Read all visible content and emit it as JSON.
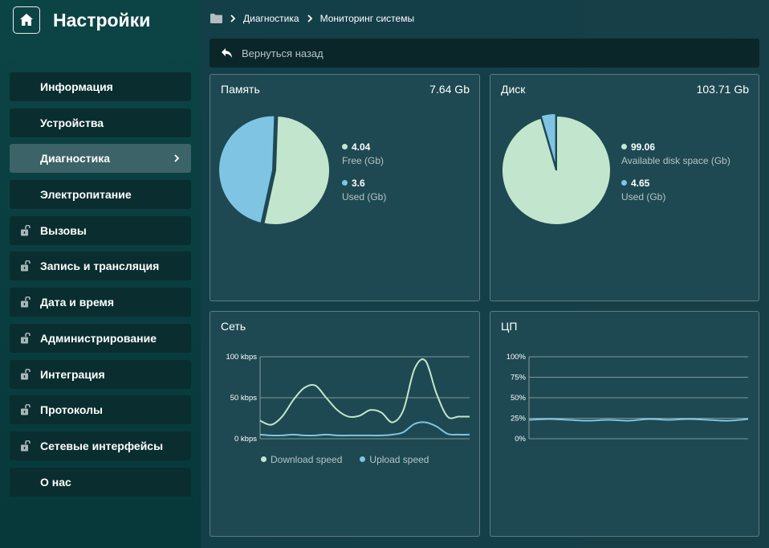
{
  "app": {
    "title": "Настройки"
  },
  "breadcrumb": [
    "Диагностика",
    "Мониторинг системы"
  ],
  "back": {
    "label": "Вернуться назад"
  },
  "sidebar": {
    "items": [
      {
        "label": "Информация",
        "locked": false,
        "active": false
      },
      {
        "label": "Устройства",
        "locked": false,
        "active": false
      },
      {
        "label": "Диагностика",
        "locked": false,
        "active": true
      },
      {
        "label": "Электропитание",
        "locked": false,
        "active": false
      },
      {
        "label": "Вызовы",
        "locked": true,
        "active": false
      },
      {
        "label": "Запись и трансляция",
        "locked": true,
        "active": false
      },
      {
        "label": "Дата и время",
        "locked": true,
        "active": false
      },
      {
        "label": "Администрирование",
        "locked": true,
        "active": false
      },
      {
        "label": "Интеграция",
        "locked": true,
        "active": false
      },
      {
        "label": "Протоколы",
        "locked": true,
        "active": false
      },
      {
        "label": "Сетевые интерфейсы",
        "locked": true,
        "active": false
      },
      {
        "label": "О нас",
        "locked": false,
        "active": false
      }
    ]
  },
  "colors": {
    "free": "#c2e6cd",
    "used": "#7fc5e3",
    "grid": "#9fb0b3"
  },
  "panels": {
    "memory": {
      "title": "Память",
      "total": "7.64 Gb"
    },
    "disk": {
      "title": "Диск",
      "total": "103.71 Gb"
    },
    "network": {
      "title": "Сеть"
    },
    "cpu": {
      "title": "ЦП"
    }
  },
  "chart_data": [
    {
      "type": "pie",
      "title": "Память",
      "slices": [
        {
          "name": "Free (Gb)",
          "value": 4.04,
          "value_label": "4.04"
        },
        {
          "name": "Used (Gb)",
          "value": 3.6,
          "value_label": "3.6"
        }
      ]
    },
    {
      "type": "pie",
      "title": "Диск",
      "slices": [
        {
          "name": "Available disk space (Gb)",
          "value": 99.06,
          "value_label": "99.06"
        },
        {
          "name": "Used (Gb)",
          "value": 4.65,
          "value_label": "4.65"
        }
      ]
    },
    {
      "type": "line",
      "title": "Сеть",
      "x": [
        0,
        1,
        2,
        3,
        4,
        5,
        6,
        7,
        8,
        9,
        10,
        11,
        12,
        13,
        14,
        15,
        16,
        17,
        18,
        19
      ],
      "ylim": [
        0,
        100
      ],
      "yticks": [
        "0 kbps",
        "50 kbps",
        "100 kbps"
      ],
      "series": [
        {
          "name": "Download speed",
          "values": [
            22,
            17,
            27,
            47,
            62,
            65,
            50,
            35,
            27,
            28,
            35,
            32,
            20,
            35,
            85,
            95,
            55,
            27,
            27,
            27
          ]
        },
        {
          "name": "Upload speed",
          "values": [
            5,
            4,
            4,
            5,
            4,
            4,
            5,
            4,
            4,
            4,
            4,
            4,
            5,
            8,
            18,
            20,
            15,
            6,
            5,
            5
          ]
        }
      ]
    },
    {
      "type": "line",
      "title": "ЦП",
      "x": [
        0,
        1,
        2,
        3,
        4,
        5,
        6,
        7,
        8,
        9,
        10,
        11
      ],
      "ylim": [
        0,
        100
      ],
      "yticks": [
        "0%",
        "25%",
        "50%",
        "75%",
        "100%"
      ],
      "series": [
        {
          "values": [
            23,
            24,
            23,
            22,
            23,
            22,
            24,
            23,
            24,
            23,
            22,
            24
          ]
        }
      ]
    }
  ]
}
